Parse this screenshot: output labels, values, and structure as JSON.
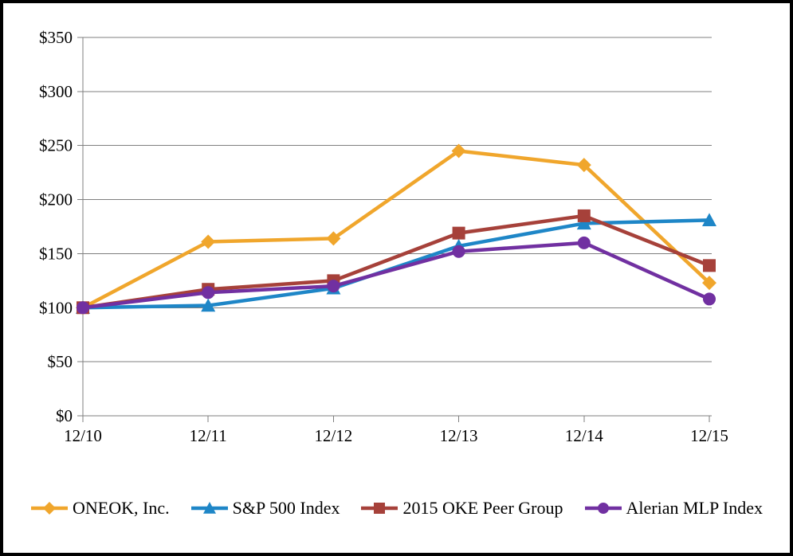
{
  "chart_data": {
    "type": "line",
    "title": "",
    "x": [
      "12/10",
      "12/11",
      "12/12",
      "12/13",
      "12/14",
      "12/15"
    ],
    "y_ticks": [
      "$0",
      "$50",
      "$100",
      "$150",
      "$200",
      "$250",
      "$300",
      "$350"
    ],
    "ylim": [
      0,
      350
    ],
    "y_tick_step": 50,
    "grid": true,
    "legend_position": "bottom",
    "series": [
      {
        "name": "ONEOK, Inc.",
        "marker": "diamond",
        "color": "#F0A62C",
        "values": [
          100,
          161,
          164,
          245,
          232,
          123
        ]
      },
      {
        "name": "S&P 500 Index",
        "marker": "triangle",
        "color": "#1E86C7",
        "values": [
          100,
          102,
          118,
          157,
          178,
          181
        ]
      },
      {
        "name": "2015 OKE Peer Group",
        "marker": "square",
        "color": "#A6413A",
        "values": [
          100,
          117,
          125,
          169,
          185,
          139
        ]
      },
      {
        "name": "Alerian MLP Index",
        "marker": "circle",
        "color": "#7130A1",
        "values": [
          100,
          114,
          120,
          152,
          160,
          108
        ]
      }
    ]
  },
  "colors": {
    "background": "#ffffff",
    "frame_border": "#000000",
    "gridline": "#7f7f7f",
    "axis": "#7f7f7f",
    "tick_text": "#000000"
  }
}
